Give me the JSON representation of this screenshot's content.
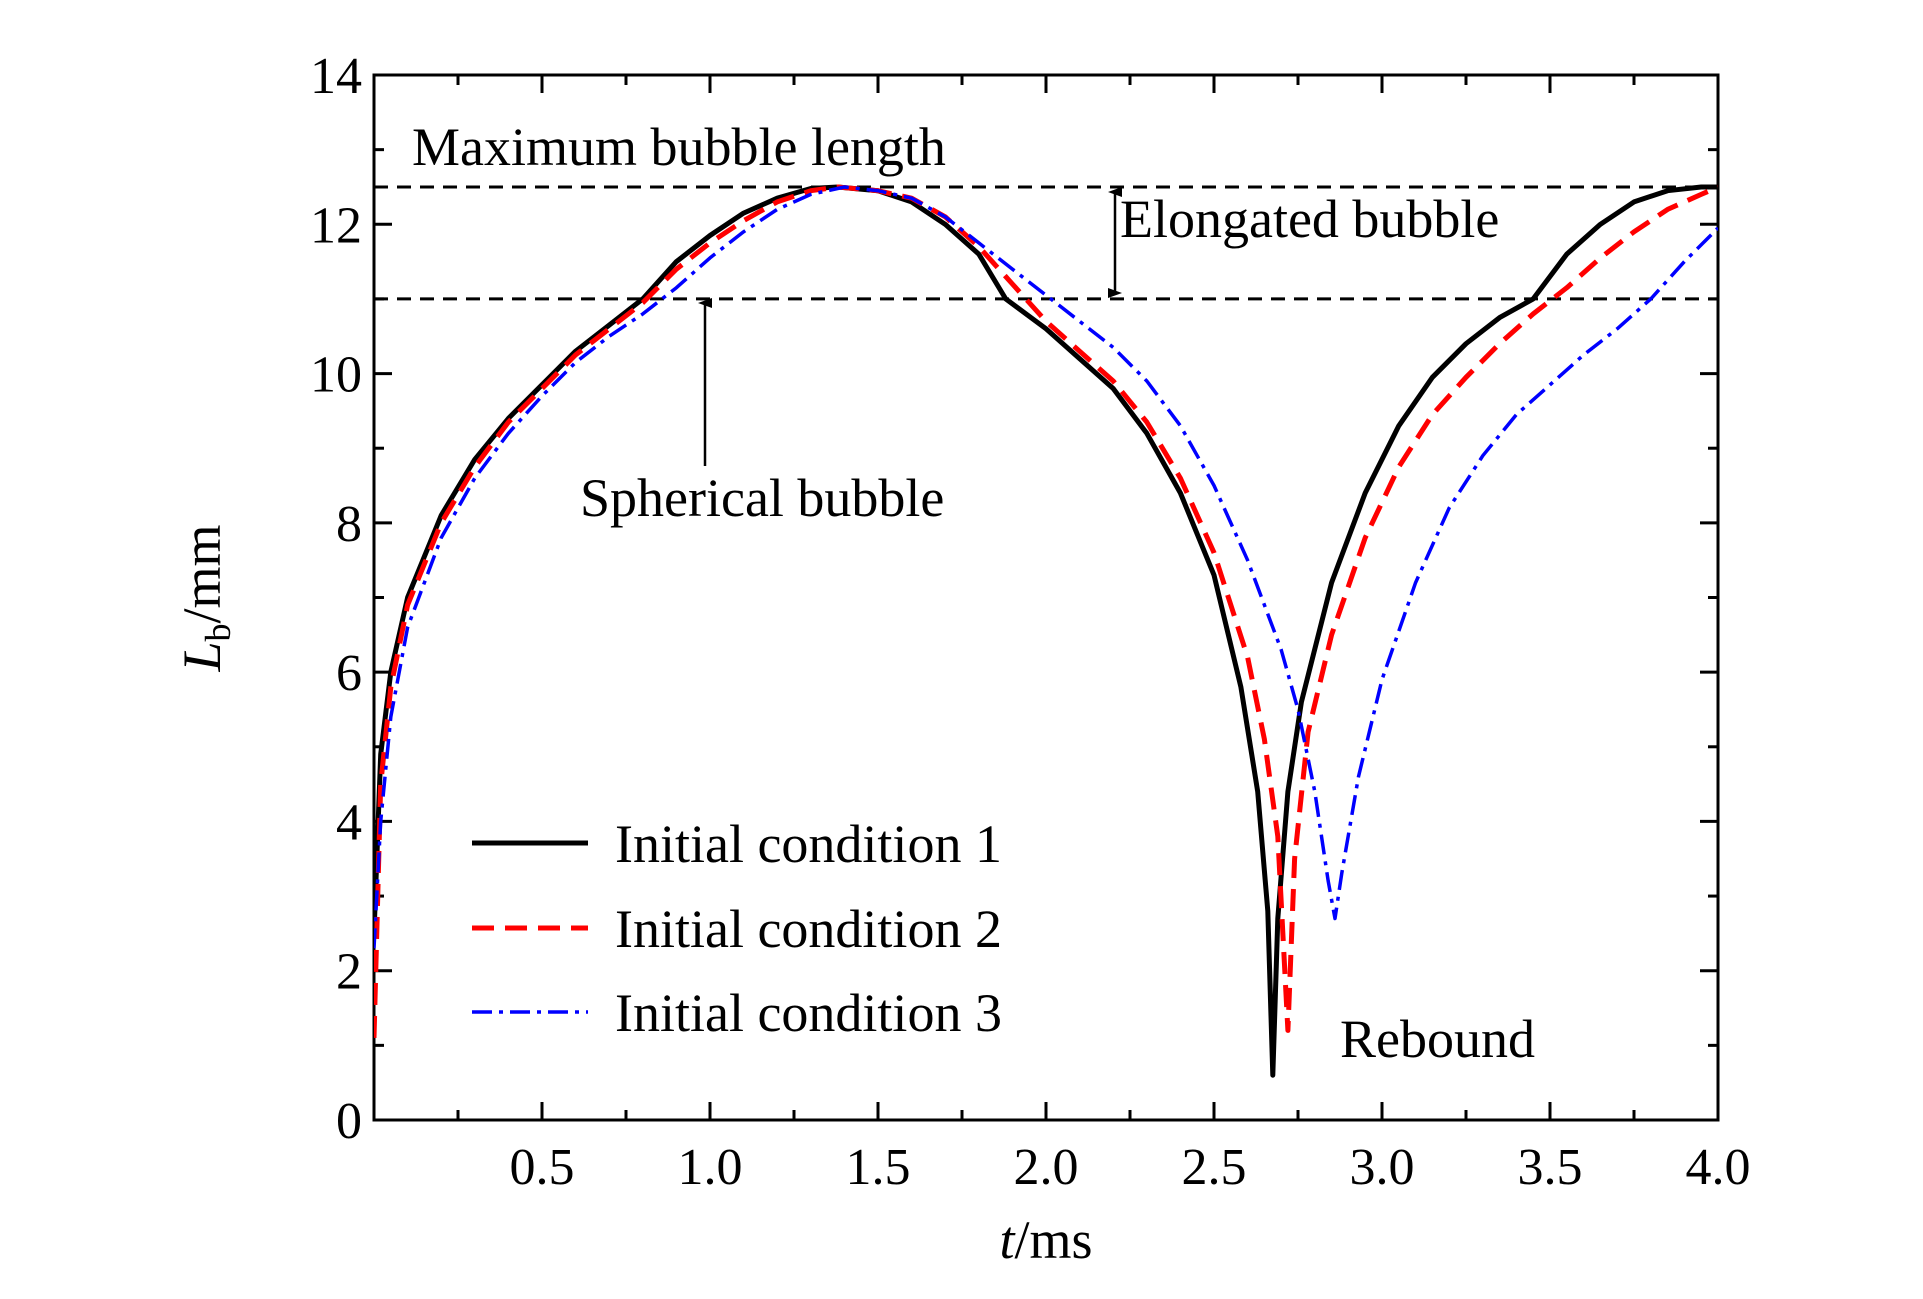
{
  "chart_data": {
    "type": "line",
    "xlabel_italic": "t",
    "xlabel_unit": "/ms",
    "ylabel_italic": "L",
    "ylabel_sub": "b",
    "ylabel_unit": "/mm",
    "xlim": [
      0,
      4.0
    ],
    "ylim": [
      0,
      14
    ],
    "xticks": [
      0.5,
      1.0,
      1.5,
      2.0,
      2.5,
      3.0,
      3.5,
      4.0
    ],
    "xtick_labels": [
      "0.5",
      "1.0",
      "1.5",
      "2.0",
      "2.5",
      "3.0",
      "3.5",
      "4.0"
    ],
    "yticks": [
      0,
      2,
      4,
      6,
      8,
      10,
      12,
      14
    ],
    "ytick_labels": [
      "0",
      "2",
      "4",
      "6",
      "8",
      "10",
      "12",
      "14"
    ],
    "grid": false,
    "legend_position": "bottom-left",
    "reference_lines": [
      {
        "y": 12.5,
        "label": "Maximum bubble length"
      },
      {
        "y": 11.0,
        "label": ""
      }
    ],
    "annotations": {
      "elongated": "Elongated bubble",
      "spherical": "Spherical bubble",
      "rebound": "Rebound"
    },
    "series": [
      {
        "name": "Initial condition 1",
        "color": "#000000",
        "style": "solid",
        "points": [
          [
            0.0,
            2.5
          ],
          [
            0.02,
            4.9
          ],
          [
            0.05,
            6.0
          ],
          [
            0.1,
            7.0
          ],
          [
            0.2,
            8.1
          ],
          [
            0.3,
            8.85
          ],
          [
            0.4,
            9.4
          ],
          [
            0.5,
            9.85
          ],
          [
            0.6,
            10.3
          ],
          [
            0.7,
            10.65
          ],
          [
            0.8,
            11.0
          ],
          [
            0.9,
            11.5
          ],
          [
            1.0,
            11.85
          ],
          [
            1.1,
            12.15
          ],
          [
            1.2,
            12.35
          ],
          [
            1.3,
            12.48
          ],
          [
            1.38,
            12.5
          ],
          [
            1.5,
            12.45
          ],
          [
            1.6,
            12.3
          ],
          [
            1.7,
            12.0
          ],
          [
            1.8,
            11.6
          ],
          [
            1.88,
            11.0
          ],
          [
            2.0,
            10.6
          ],
          [
            2.1,
            10.2
          ],
          [
            2.2,
            9.8
          ],
          [
            2.3,
            9.2
          ],
          [
            2.4,
            8.4
          ],
          [
            2.5,
            7.3
          ],
          [
            2.58,
            5.8
          ],
          [
            2.63,
            4.4
          ],
          [
            2.66,
            2.8
          ],
          [
            2.675,
            0.6
          ],
          [
            2.69,
            2.7
          ],
          [
            2.72,
            4.4
          ],
          [
            2.76,
            5.6
          ],
          [
            2.85,
            7.2
          ],
          [
            2.95,
            8.4
          ],
          [
            3.05,
            9.3
          ],
          [
            3.15,
            9.95
          ],
          [
            3.25,
            10.4
          ],
          [
            3.35,
            10.75
          ],
          [
            3.45,
            11.0
          ],
          [
            3.55,
            11.6
          ],
          [
            3.65,
            12.0
          ],
          [
            3.75,
            12.3
          ],
          [
            3.85,
            12.45
          ],
          [
            3.95,
            12.5
          ],
          [
            4.0,
            12.5
          ]
        ]
      },
      {
        "name": "Initial condition 2",
        "color": "#ff0000",
        "style": "dashed",
        "points": [
          [
            0.0,
            1.1
          ],
          [
            0.02,
            4.5
          ],
          [
            0.05,
            5.8
          ],
          [
            0.1,
            6.9
          ],
          [
            0.2,
            8.0
          ],
          [
            0.3,
            8.75
          ],
          [
            0.4,
            9.35
          ],
          [
            0.5,
            9.8
          ],
          [
            0.6,
            10.25
          ],
          [
            0.7,
            10.6
          ],
          [
            0.8,
            10.95
          ],
          [
            0.9,
            11.4
          ],
          [
            1.0,
            11.75
          ],
          [
            1.1,
            12.05
          ],
          [
            1.2,
            12.3
          ],
          [
            1.3,
            12.45
          ],
          [
            1.38,
            12.5
          ],
          [
            1.5,
            12.45
          ],
          [
            1.6,
            12.35
          ],
          [
            1.7,
            12.1
          ],
          [
            1.8,
            11.7
          ],
          [
            1.9,
            11.2
          ],
          [
            2.0,
            10.7
          ],
          [
            2.1,
            10.3
          ],
          [
            2.2,
            9.9
          ],
          [
            2.3,
            9.35
          ],
          [
            2.4,
            8.6
          ],
          [
            2.5,
            7.6
          ],
          [
            2.6,
            6.2
          ],
          [
            2.65,
            5.1
          ],
          [
            2.69,
            3.8
          ],
          [
            2.72,
            1.2
          ],
          [
            2.74,
            3.5
          ],
          [
            2.78,
            5.2
          ],
          [
            2.85,
            6.5
          ],
          [
            2.95,
            7.8
          ],
          [
            3.05,
            8.75
          ],
          [
            3.15,
            9.45
          ],
          [
            3.25,
            9.95
          ],
          [
            3.35,
            10.4
          ],
          [
            3.45,
            10.8
          ],
          [
            3.55,
            11.15
          ],
          [
            3.65,
            11.55
          ],
          [
            3.75,
            11.9
          ],
          [
            3.85,
            12.2
          ],
          [
            3.95,
            12.4
          ],
          [
            4.0,
            12.5
          ]
        ]
      },
      {
        "name": "Initial condition 3",
        "color": "#0000ff",
        "style": "dashdot",
        "points": [
          [
            0.0,
            2.3
          ],
          [
            0.02,
            4.0
          ],
          [
            0.05,
            5.4
          ],
          [
            0.1,
            6.6
          ],
          [
            0.2,
            7.8
          ],
          [
            0.3,
            8.6
          ],
          [
            0.4,
            9.2
          ],
          [
            0.5,
            9.7
          ],
          [
            0.6,
            10.15
          ],
          [
            0.7,
            10.5
          ],
          [
            0.8,
            10.8
          ],
          [
            0.9,
            11.15
          ],
          [
            1.0,
            11.55
          ],
          [
            1.1,
            11.9
          ],
          [
            1.2,
            12.2
          ],
          [
            1.3,
            12.4
          ],
          [
            1.4,
            12.5
          ],
          [
            1.5,
            12.45
          ],
          [
            1.6,
            12.35
          ],
          [
            1.7,
            12.1
          ],
          [
            1.8,
            11.75
          ],
          [
            1.9,
            11.4
          ],
          [
            2.0,
            11.05
          ],
          [
            2.1,
            10.7
          ],
          [
            2.2,
            10.35
          ],
          [
            2.3,
            9.9
          ],
          [
            2.4,
            9.3
          ],
          [
            2.5,
            8.5
          ],
          [
            2.6,
            7.5
          ],
          [
            2.7,
            6.3
          ],
          [
            2.75,
            5.5
          ],
          [
            2.8,
            4.4
          ],
          [
            2.84,
            3.2
          ],
          [
            2.86,
            2.7
          ],
          [
            2.88,
            3.3
          ],
          [
            2.93,
            4.6
          ],
          [
            3.0,
            5.9
          ],
          [
            3.1,
            7.2
          ],
          [
            3.2,
            8.2
          ],
          [
            3.3,
            8.9
          ],
          [
            3.4,
            9.45
          ],
          [
            3.5,
            9.85
          ],
          [
            3.6,
            10.25
          ],
          [
            3.7,
            10.6
          ],
          [
            3.8,
            11.0
          ],
          [
            3.9,
            11.5
          ],
          [
            4.0,
            11.95
          ]
        ]
      }
    ]
  }
}
